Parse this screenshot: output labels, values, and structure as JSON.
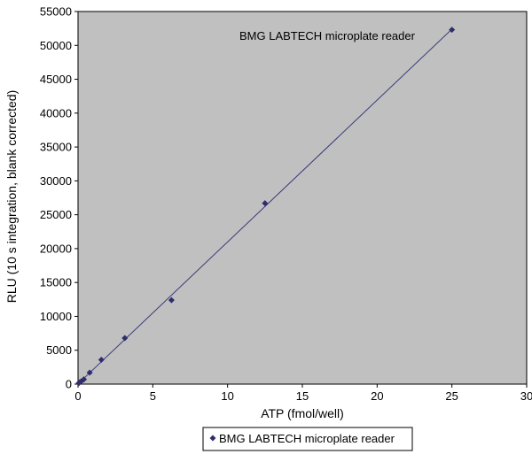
{
  "chart_data": {
    "type": "scatter",
    "title": "",
    "xlabel": "ATP (fmol/well)",
    "ylabel": "RLU (10 s integration, blank corrected)",
    "xlim": [
      0,
      30
    ],
    "ylim": [
      0,
      55000
    ],
    "xticks": [
      "0",
      "5",
      "10",
      "15",
      "20",
      "25",
      "30"
    ],
    "yticks": [
      "0",
      "5000",
      "10000",
      "15000",
      "20000",
      "25000",
      "30000",
      "35000",
      "40000",
      "45000",
      "50000",
      "55000"
    ],
    "annotation": "BMG LABTECH microplate reader",
    "legend_placement": "bottom",
    "plot_background": "#c0c0c0",
    "series": [
      {
        "name": "BMG LABTECH microplate reader",
        "color": "#2e2e6e",
        "marker": "diamond",
        "trendline": "linear",
        "x": [
          0.05,
          0.1,
          0.2,
          0.39,
          0.78,
          1.56,
          3.13,
          6.25,
          12.5,
          25
        ],
        "y": [
          150,
          250,
          400,
          700,
          1700,
          3600,
          6800,
          12400,
          26700,
          52300
        ]
      }
    ]
  }
}
